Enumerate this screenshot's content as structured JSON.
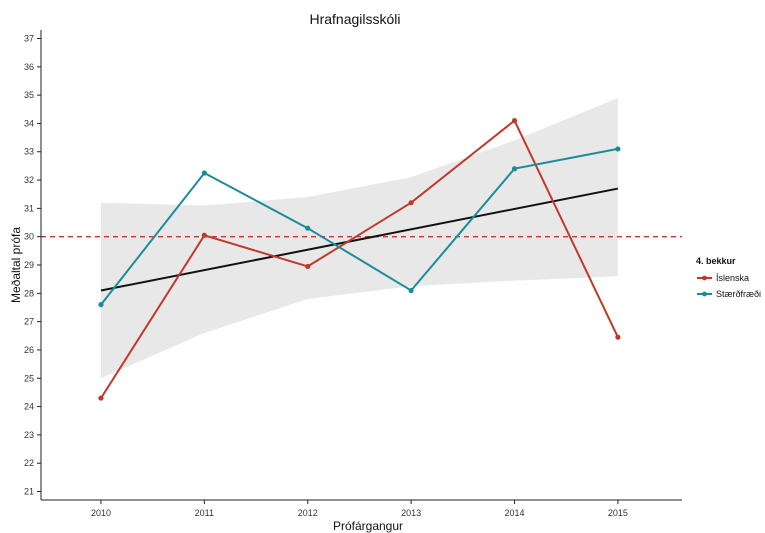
{
  "chart_data": {
    "type": "line",
    "title": "Hrafnagilsskóli",
    "xlabel": "Prófárgangur",
    "ylabel": "Meðaltal prófa",
    "x": [
      2010,
      2011,
      2012,
      2013,
      2014,
      2015
    ],
    "xlim": [
      2009.42,
      2015.62
    ],
    "ylim": [
      20.7,
      37.3
    ],
    "yticks": [
      21,
      22,
      23,
      24,
      25,
      26,
      27,
      28,
      29,
      30,
      31,
      32,
      33,
      34,
      35,
      36,
      37
    ],
    "series": [
      {
        "name": "Íslenska",
        "color": "#c0392b",
        "values": [
          24.3,
          30.05,
          28.95,
          31.2,
          34.1,
          26.45
        ]
      },
      {
        "name": "Stærðfræði",
        "color": "#1a8c9a",
        "values": [
          27.6,
          32.25,
          30.3,
          28.1,
          32.4,
          33.1
        ]
      }
    ],
    "trend": {
      "color": "#111111",
      "start": [
        2010,
        28.1
      ],
      "end": [
        2015,
        31.7
      ]
    },
    "confidence_band": {
      "x": [
        2010,
        2011,
        2012,
        2013,
        2014,
        2015
      ],
      "lower": [
        25.0,
        26.6,
        27.8,
        28.25,
        28.45,
        28.6
      ],
      "upper": [
        31.2,
        31.1,
        31.4,
        32.1,
        33.4,
        34.9
      ],
      "color": "#e8e8e8"
    },
    "reference_line": {
      "y": 30,
      "color": "#c0392b",
      "style": "dashed"
    },
    "legend": {
      "title": "4. bekkur",
      "position": "right"
    },
    "grid": false
  }
}
